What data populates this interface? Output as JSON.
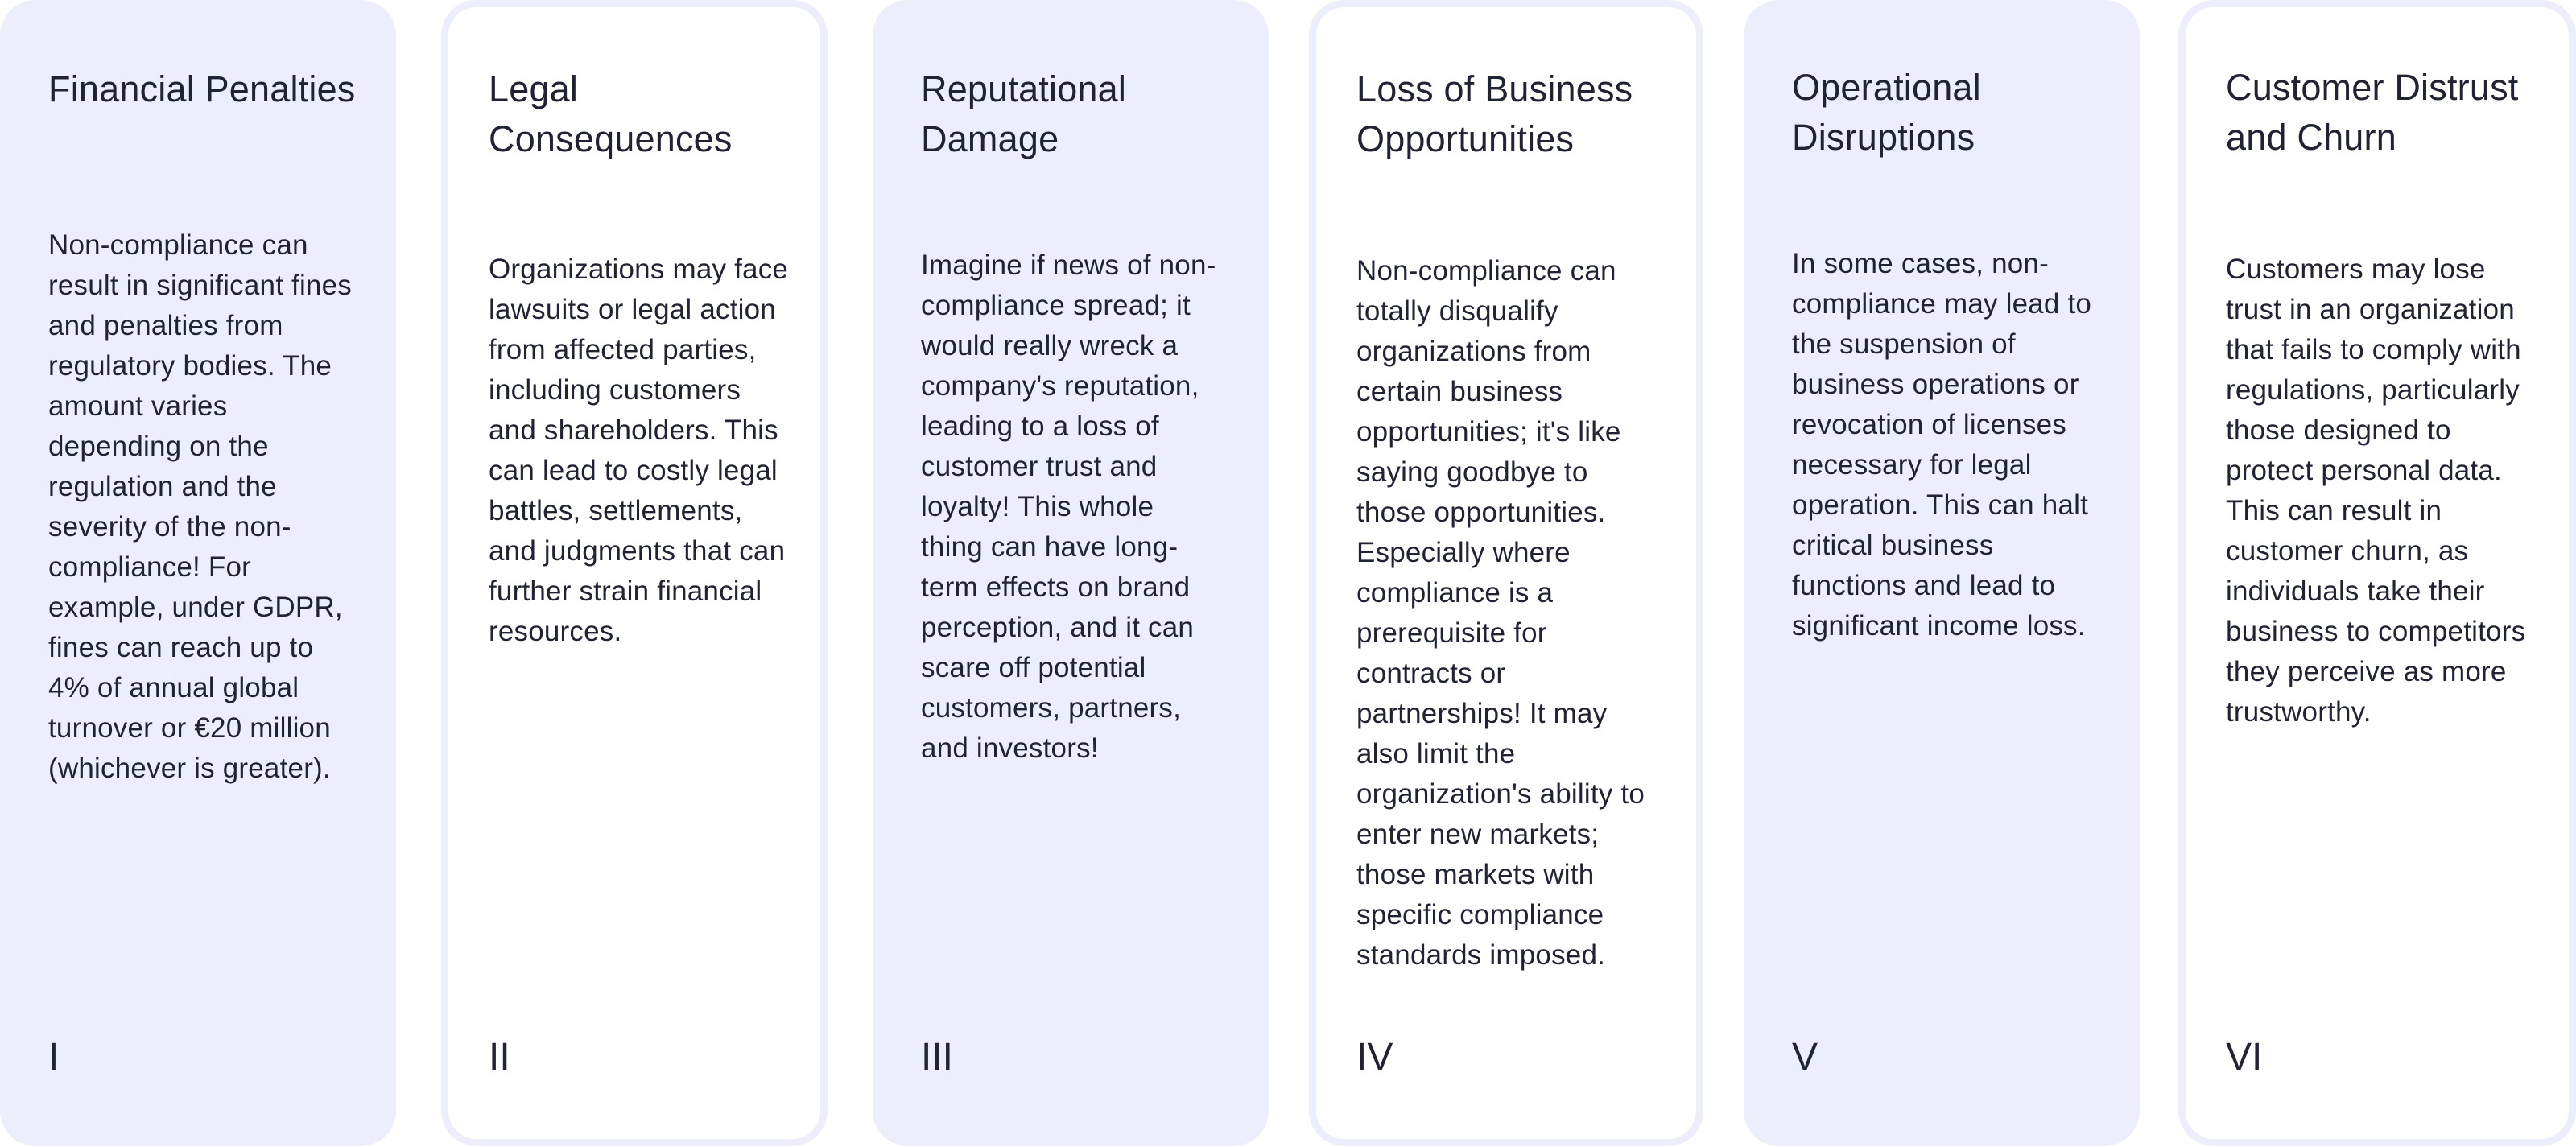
{
  "cards": [
    {
      "title": "Financial Penalties",
      "body": "Non-compliance can result in significant fines and penalties from regulatory bodies. The amount varies depending on the regulation and the severity of the non-compliance! For example, under GDPR, fines can reach up to 4% of annual global turnover or €20 million (whichever is greater).",
      "numeral": "I",
      "color": "#eceefc"
    },
    {
      "title": "Legal Consequences",
      "body": "Organizations may face lawsuits or legal action from affected parties, including customers and shareholders. This can lead to costly legal battles, settlements, and judgments that can further strain financial resources.",
      "numeral": "II",
      "color": "#ffffff"
    },
    {
      "title": "Reputational Damage",
      "body": "Imagine if news of non-compliance spread; it would really wreck a company's reputation, leading to a loss of customer trust and loyalty! This whole thing can have long-term effects on brand perception, and it can scare off potential customers, partners, and investors!",
      "numeral": "III",
      "color": "#eceefc"
    },
    {
      "title": "Loss of Business Opportunities",
      "body": "Non-compliance can totally disqualify organizations from certain business opportunities; it's like saying goodbye to those opportunities. Especially where compliance is a prerequisite for contracts or partnerships! It may also limit the organization's ability to enter new markets; those markets with specific compliance standards imposed.",
      "numeral": "IV",
      "color": "#ffffff"
    },
    {
      "title": "Operational Disruptions",
      "body": "In some cases, non-compliance may lead to the suspension of business operations or revocation of licenses necessary for legal operation. This can halt critical business functions and lead to significant income loss.",
      "numeral": "V",
      "color": "#eceefc"
    },
    {
      "title": "Customer Distrust and Churn",
      "body": "Customers may lose trust in an organization that fails to comply with regulations, particularly those designed to protect personal data. This can result in customer churn, as individuals take their business to competitors they perceive as more trustworthy.",
      "numeral": "VI",
      "color": "#ffffff"
    }
  ]
}
